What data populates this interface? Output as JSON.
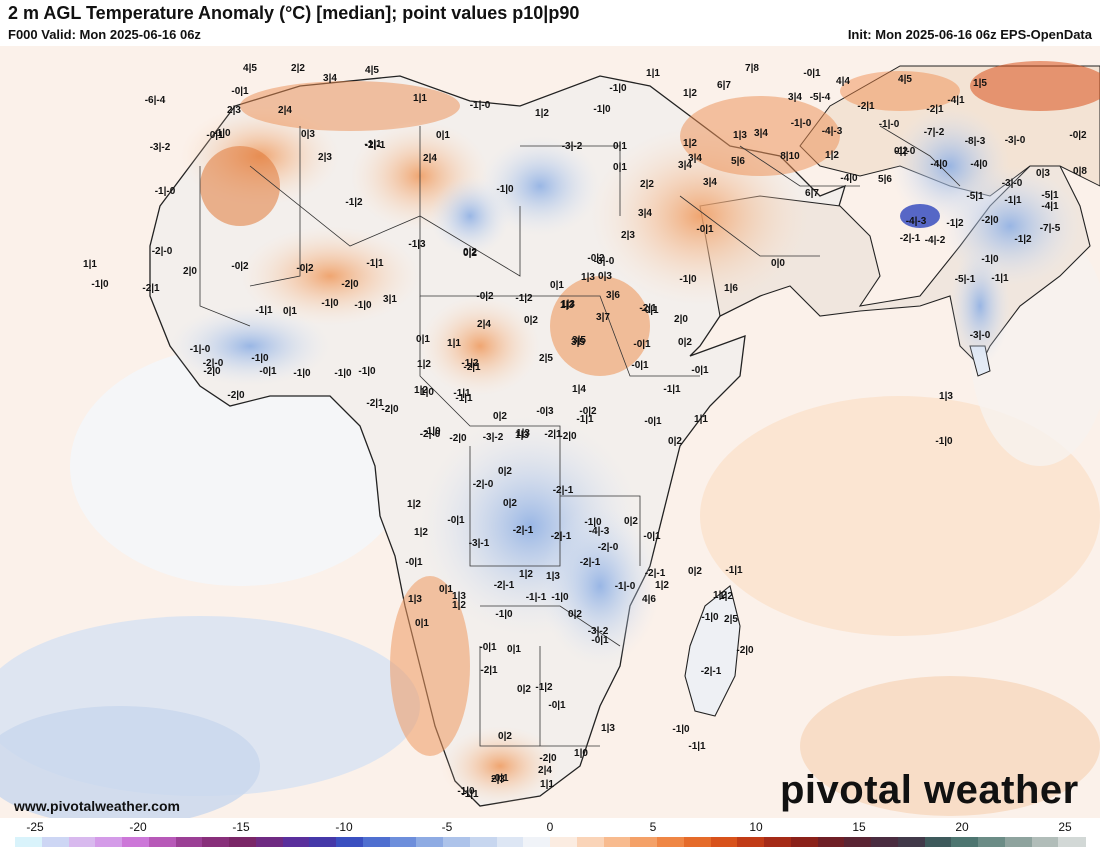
{
  "header": {
    "title": "2 m AGL Temperature Anomaly (°C) [median]; point values p10|p90",
    "valid": "F000 Valid: Mon 2025-06-16 06z",
    "init": "Init: Mon 2025-06-16 06z EPS-OpenData"
  },
  "footer": {
    "website": "www.pivotalweather.com",
    "brand": "pivotal weather"
  },
  "colorbar": {
    "ticks": [
      "-25",
      "-20",
      "-15",
      "-10",
      "-5",
      "0",
      "5",
      "10",
      "15",
      "20",
      "25"
    ],
    "colors": [
      "#d9f3fb",
      "#cdd6f4",
      "#d8b9ee",
      "#d49be8",
      "#cc77d8",
      "#b759b8",
      "#9b3f95",
      "#882f7a",
      "#7a2667",
      "#6f2a82",
      "#5a2f9c",
      "#4538a8",
      "#3a4fc0",
      "#4f6fd0",
      "#6d8edb",
      "#8eabe3",
      "#adc3ea",
      "#c7d6ef",
      "#dde6f4",
      "#f0f3f8",
      "#fbece1",
      "#fad4b8",
      "#f8bb8f",
      "#f4a168",
      "#ef8645",
      "#e56b2a",
      "#d8521b",
      "#c13b16",
      "#a52a17",
      "#8b2119",
      "#6f1f26",
      "#5a2433",
      "#4a2c40",
      "#413949",
      "#3e5a5c",
      "#4d7570",
      "#6b8c86",
      "#8ea39e",
      "#b1bdb9",
      "#d2d8d6"
    ]
  },
  "point_values": [
    {
      "t": "4|5"
    },
    {
      "t": "2|2"
    },
    {
      "t": "3|4"
    },
    {
      "t": "4|5"
    },
    {
      "t": "-6|-4"
    },
    {
      "t": "-0|1"
    },
    {
      "t": "2|3"
    },
    {
      "t": "2|4"
    },
    {
      "t": "-1|0"
    },
    {
      "t": "1|1"
    },
    {
      "t": "-1|-0"
    },
    {
      "t": "1|2"
    },
    {
      "t": "-1|0"
    },
    {
      "t": "1|1"
    },
    {
      "t": "-1|0"
    },
    {
      "t": "1|2"
    },
    {
      "t": "6|7"
    },
    {
      "t": "7|8"
    },
    {
      "t": "-0|1"
    },
    {
      "t": "4|4"
    },
    {
      "t": "4|5"
    },
    {
      "t": "-2|1"
    },
    {
      "t": "3|4"
    },
    {
      "t": "-5|-4"
    },
    {
      "t": "-2|1"
    },
    {
      "t": "-4|1"
    },
    {
      "t": "1|5"
    },
    {
      "t": "-3|-2"
    },
    {
      "t": "-0|1"
    },
    {
      "t": "0|3"
    },
    {
      "t": "0|1"
    },
    {
      "t": "-2|-1"
    },
    {
      "t": "-3|-2"
    },
    {
      "t": "0|1"
    },
    {
      "t": "3|4"
    },
    {
      "t": "3|4"
    },
    {
      "t": "-1|-0"
    },
    {
      "t": "-4|-3"
    },
    {
      "t": "-1|-0"
    },
    {
      "t": "-7|-2"
    },
    {
      "t": "-0|2"
    },
    {
      "t": "-1|-0"
    },
    {
      "t": "2|3"
    },
    {
      "t": "-1|1"
    },
    {
      "t": "2|4"
    },
    {
      "t": "-8|-3"
    },
    {
      "t": "-3|-0"
    },
    {
      "t": "1|3"
    },
    {
      "t": "5|6"
    },
    {
      "t": "8|10"
    },
    {
      "t": "1|2"
    },
    {
      "t": "0|2"
    },
    {
      "t": "-4|0"
    },
    {
      "t": "-4|0"
    },
    {
      "t": "0|3"
    },
    {
      "t": "0|8"
    },
    {
      "t": "-5|1"
    },
    {
      "t": "-1|-0"
    },
    {
      "t": "-1|2"
    },
    {
      "t": "-1|0"
    },
    {
      "t": "0|1"
    },
    {
      "t": "2|2"
    },
    {
      "t": "3|4"
    },
    {
      "t": "3|4"
    },
    {
      "t": "1|2"
    },
    {
      "t": "6|7"
    },
    {
      "t": "-4|0"
    },
    {
      "t": "5|6"
    },
    {
      "t": "-3|-0"
    },
    {
      "t": "-5|1"
    },
    {
      "t": "-1|1"
    },
    {
      "t": "-4|1"
    },
    {
      "t": "-2|-1"
    },
    {
      "t": "3|4"
    },
    {
      "t": "-2|0"
    },
    {
      "t": "-4|-3"
    },
    {
      "t": "-1|2"
    },
    {
      "t": "-7|-5"
    },
    {
      "t": "-1|3"
    },
    {
      "t": "0|2"
    },
    {
      "t": "2|3"
    },
    {
      "t": "-0|1"
    },
    {
      "t": "-4|-2"
    },
    {
      "t": "-1|2"
    },
    {
      "t": "-2|-0"
    },
    {
      "t": "1|1"
    },
    {
      "t": "-1|0"
    },
    {
      "t": "2|0"
    },
    {
      "t": "-0|2"
    },
    {
      "t": "-0|2"
    },
    {
      "t": "-1|1"
    },
    {
      "t": "0|2"
    },
    {
      "t": "-0|2"
    },
    {
      "t": "0|1"
    },
    {
      "t": "1|3"
    },
    {
      "t": "-3|-0"
    },
    {
      "t": "-1|0"
    },
    {
      "t": "0|0"
    },
    {
      "t": "-1|0"
    },
    {
      "t": "-2|1"
    },
    {
      "t": "-2|0"
    },
    {
      "t": "3|1"
    },
    {
      "t": "-0|2"
    },
    {
      "t": "-1|2"
    },
    {
      "t": "0|3"
    },
    {
      "t": "1|6"
    },
    {
      "t": "-5|-1"
    },
    {
      "t": "-1|1"
    },
    {
      "t": "1|3"
    },
    {
      "t": "3|6"
    },
    {
      "t": "-0|1"
    },
    {
      "t": "0|1"
    },
    {
      "t": "-1|0"
    },
    {
      "t": "-1|0"
    },
    {
      "t": "1|3"
    },
    {
      "t": "3|7"
    },
    {
      "t": "2|0"
    },
    {
      "t": "3|5"
    },
    {
      "t": "0|1"
    },
    {
      "t": "1|1"
    },
    {
      "t": "2|4"
    },
    {
      "t": "0|2"
    },
    {
      "t": "-2|1"
    },
    {
      "t": "0|2"
    },
    {
      "t": "-1|2"
    },
    {
      "t": "-0|1"
    },
    {
      "t": "-0|1"
    },
    {
      "t": "-1|-0"
    },
    {
      "t": "-1|1"
    },
    {
      "t": "-2|-0"
    },
    {
      "t": "-1|0"
    },
    {
      "t": "2|5"
    },
    {
      "t": "3|5"
    },
    {
      "t": "-0|1"
    },
    {
      "t": "-3|-0"
    },
    {
      "t": "1|2"
    },
    {
      "t": "-2|1"
    },
    {
      "t": "-1|0"
    },
    {
      "t": "-2|0"
    },
    {
      "t": "-0|1"
    },
    {
      "t": "-1|0"
    },
    {
      "t": "-1|0"
    },
    {
      "t": "1|2"
    },
    {
      "t": "-1|0"
    },
    {
      "t": "-1|1"
    },
    {
      "t": "1|4"
    },
    {
      "t": "-1|1"
    },
    {
      "t": "-2|0"
    },
    {
      "t": "-0|3"
    },
    {
      "t": "0|2"
    },
    {
      "t": "1|3"
    },
    {
      "t": "-0|2"
    },
    {
      "t": "-0|1"
    },
    {
      "t": "1|1"
    },
    {
      "t": "0|2"
    },
    {
      "t": "1|3"
    },
    {
      "t": "-1|0"
    },
    {
      "t": "-2|0"
    },
    {
      "t": "-2|1"
    },
    {
      "t": "1|0"
    },
    {
      "t": "-1|1"
    },
    {
      "t": "1|3"
    },
    {
      "t": "-2|1"
    },
    {
      "t": "-2|0"
    },
    {
      "t": "-1|1"
    },
    {
      "t": "-2|-0"
    },
    {
      "t": "-2|0"
    },
    {
      "t": "-3|-2"
    },
    {
      "t": "0|2"
    },
    {
      "t": "-2|-1"
    },
    {
      "t": "-2|-0"
    },
    {
      "t": "0|2"
    },
    {
      "t": "-0|1"
    },
    {
      "t": "1|2"
    },
    {
      "t": "1|2"
    },
    {
      "t": "-3|-1"
    },
    {
      "t": "-2|-1"
    },
    {
      "t": "-2|-1"
    },
    {
      "t": "-4|-3"
    },
    {
      "t": "-0|1"
    },
    {
      "t": "-2|-0"
    },
    {
      "t": "-0|1"
    },
    {
      "t": "0|1"
    },
    {
      "t": "-1|0"
    },
    {
      "t": "0|2"
    },
    {
      "t": "1|2"
    },
    {
      "t": "1|3"
    },
    {
      "t": "-1|0"
    },
    {
      "t": "-2|-1"
    },
    {
      "t": "-2|-1"
    },
    {
      "t": "-0|1"
    },
    {
      "t": "1|1"
    },
    {
      "t": "-1|0"
    },
    {
      "t": "1|3"
    },
    {
      "t": "1|3"
    },
    {
      "t": "0|1"
    },
    {
      "t": "-2|-1"
    },
    {
      "t": "-1|-1"
    },
    {
      "t": "0|2"
    },
    {
      "t": "-1|0"
    },
    {
      "t": "1|2"
    },
    {
      "t": "-0|1"
    },
    {
      "t": "0|1"
    },
    {
      "t": "-1|-0"
    },
    {
      "t": "1|2"
    },
    {
      "t": "0|2"
    },
    {
      "t": "-1|1"
    },
    {
      "t": "1|2"
    },
    {
      "t": "2|5"
    },
    {
      "t": "-2|0"
    },
    {
      "t": "1|2"
    },
    {
      "t": "-2|1"
    },
    {
      "t": "-1|0"
    },
    {
      "t": "-1|2"
    },
    {
      "t": "-3|-2"
    },
    {
      "t": "-2|-1"
    },
    {
      "t": "-0|1"
    },
    {
      "t": "4|6"
    },
    {
      "t": "2|3"
    },
    {
      "t": "2|4"
    },
    {
      "t": "-1|1"
    },
    {
      "t": "-0|1"
    },
    {
      "t": "0|2"
    },
    {
      "t": "0|2"
    },
    {
      "t": "1|3"
    },
    {
      "t": "-2|0"
    },
    {
      "t": "1|0"
    },
    {
      "t": "-1|0"
    },
    {
      "t": "-1|1"
    }
  ]
}
